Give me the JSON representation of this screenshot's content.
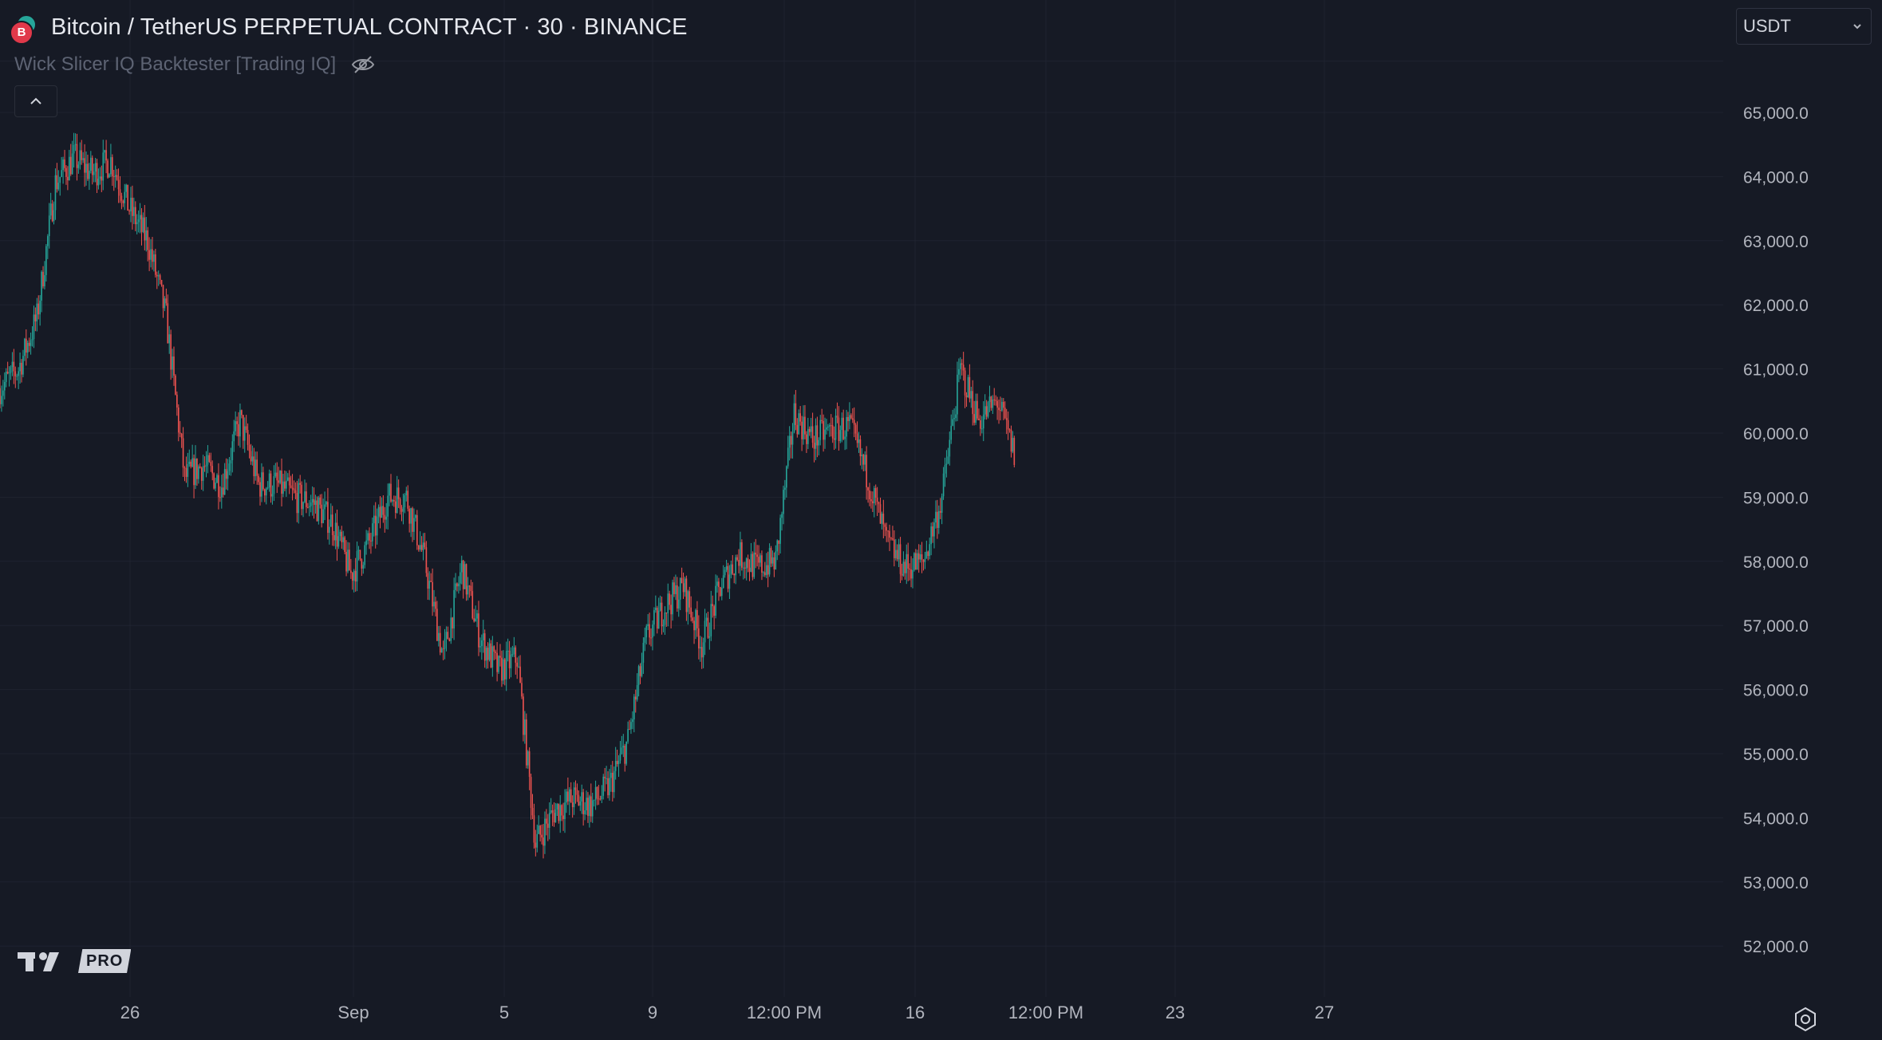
{
  "header": {
    "symbol_title": "Bitcoin / TetherUS PERPETUAL CONTRACT · 30 · BINANCE",
    "badge_letter": "B"
  },
  "indicator": {
    "name": "Wick Slicer IQ Backtester [Trading IQ]"
  },
  "currency_select": {
    "value": "USDT"
  },
  "logo": {
    "pro_label": "PRO"
  },
  "colors": {
    "background": "#161a25",
    "grid": "#1f2330",
    "up": "#26a69a",
    "down": "#ef5350",
    "axis_text": "#b2b5be"
  },
  "chart_data": {
    "type": "candlestick",
    "title": "",
    "y_axis": {
      "side": "right",
      "ticks": [
        "52,000.0",
        "53,000.0",
        "54,000.0",
        "55,000.0",
        "56,000.0",
        "57,000.0",
        "58,000.0",
        "59,000.0",
        "60,000.0",
        "61,000.0",
        "62,000.0",
        "63,000.0",
        "64,000.0",
        "65,000.0"
      ],
      "ylim": [
        51700,
        65900
      ]
    },
    "x_axis": {
      "ticks": [
        "26",
        "Sep",
        "5",
        "9",
        "12:00 PM",
        "16",
        "12:00 PM",
        "23",
        "27"
      ]
    },
    "price_path": [
      {
        "t": "Aug 23",
        "price": 60700
      },
      {
        "t": "Aug 23 late",
        "price": 61000
      },
      {
        "t": "Aug 24",
        "price": 61800
      },
      {
        "t": "Aug 24 late",
        "price": 63900
      },
      {
        "t": "Aug 25",
        "price": 64300
      },
      {
        "t": "Aug 25 late",
        "price": 64050
      },
      {
        "t": "Aug 26",
        "price": 64250
      },
      {
        "t": "Aug 26 late",
        "price": 63500
      },
      {
        "t": "Aug 27",
        "price": 63000
      },
      {
        "t": "Aug 27 late",
        "price": 61800
      },
      {
        "t": "Aug 28",
        "price": 59300
      },
      {
        "t": "Aug 28 late",
        "price": 59500
      },
      {
        "t": "Aug 29",
        "price": 59200
      },
      {
        "t": "Aug 29 late",
        "price": 60200
      },
      {
        "t": "Aug 30",
        "price": 59200
      },
      {
        "t": "Aug 30 late",
        "price": 59200
      },
      {
        "t": "Aug 31",
        "price": 59000
      },
      {
        "t": "Aug 31 late",
        "price": 58900
      },
      {
        "t": "Sep 1",
        "price": 58600
      },
      {
        "t": "Sep 1 late",
        "price": 57800
      },
      {
        "t": "Sep 2",
        "price": 58300
      },
      {
        "t": "Sep 2 late",
        "price": 59000
      },
      {
        "t": "Sep 3",
        "price": 59000
      },
      {
        "t": "Sep 3 late",
        "price": 58000
      },
      {
        "t": "Sep 4",
        "price": 56500
      },
      {
        "t": "Sep 4 late",
        "price": 57900
      },
      {
        "t": "Sep 5",
        "price": 56800
      },
      {
        "t": "Sep 5 late",
        "price": 56300
      },
      {
        "t": "Sep 6",
        "price": 56500
      },
      {
        "t": "Sep 6 late",
        "price": 53600
      },
      {
        "t": "Sep 7",
        "price": 54100
      },
      {
        "t": "Sep 7 late",
        "price": 54300
      },
      {
        "t": "Sep 8",
        "price": 54200
      },
      {
        "t": "Sep 8 late",
        "price": 54500
      },
      {
        "t": "Sep 9",
        "price": 55200
      },
      {
        "t": "Sep 9 late",
        "price": 56800
      },
      {
        "t": "Sep 10",
        "price": 57300
      },
      {
        "t": "Sep 10 late",
        "price": 57600
      },
      {
        "t": "Sep 11",
        "price": 56700
      },
      {
        "t": "Sep 11 late",
        "price": 57600
      },
      {
        "t": "Sep 12",
        "price": 58100
      },
      {
        "t": "Sep 12 late",
        "price": 57900
      },
      {
        "t": "Sep 13",
        "price": 58000
      },
      {
        "t": "Sep 13 late",
        "price": 60300
      },
      {
        "t": "Sep 14",
        "price": 59900
      },
      {
        "t": "Sep 14 late",
        "price": 60050
      },
      {
        "t": "Sep 15",
        "price": 60100
      },
      {
        "t": "Sep 15 late",
        "price": 59300
      },
      {
        "t": "Sep 16",
        "price": 58300
      },
      {
        "t": "Sep 16 late",
        "price": 57900
      },
      {
        "t": "Sep 17",
        "price": 58000
      },
      {
        "t": "Sep 17 late",
        "price": 59000
      },
      {
        "t": "Sep 18",
        "price": 61000
      },
      {
        "t": "Sep 18 late",
        "price": 60200
      },
      {
        "t": "Sep 19",
        "price": 60500
      },
      {
        "t": "Sep 19 late",
        "price": 59600
      }
    ]
  }
}
